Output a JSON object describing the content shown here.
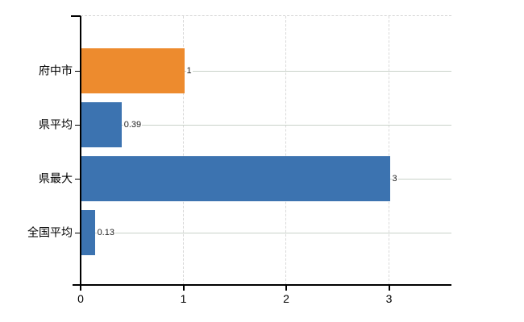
{
  "chart_data": {
    "type": "bar",
    "orientation": "horizontal",
    "categories": [
      "府中市",
      "県平均",
      "県最大",
      "全国平均"
    ],
    "values": [
      1,
      0.39,
      3,
      0.13
    ],
    "value_labels": [
      "1",
      "0.39",
      "3",
      "0.13"
    ],
    "bar_colors": [
      "#ed8b2e",
      "#3c73b0",
      "#3c73b0",
      "#3c73b0"
    ],
    "x_ticks": [
      0,
      1,
      2,
      3
    ],
    "x_tick_labels": [
      "0",
      "1",
      "2",
      "3"
    ],
    "xlim": [
      0,
      3.6
    ],
    "grid": true,
    "legend": false
  },
  "colors": {
    "background": "#ffffff",
    "axis": "#000000",
    "horizontal_grid": "#c9d2c9",
    "vertical_grid": "#d9d9d9",
    "top_border": "#d4d4d4",
    "category_text": "#000000",
    "tick_text": "#000000",
    "value_text": "#222222"
  }
}
